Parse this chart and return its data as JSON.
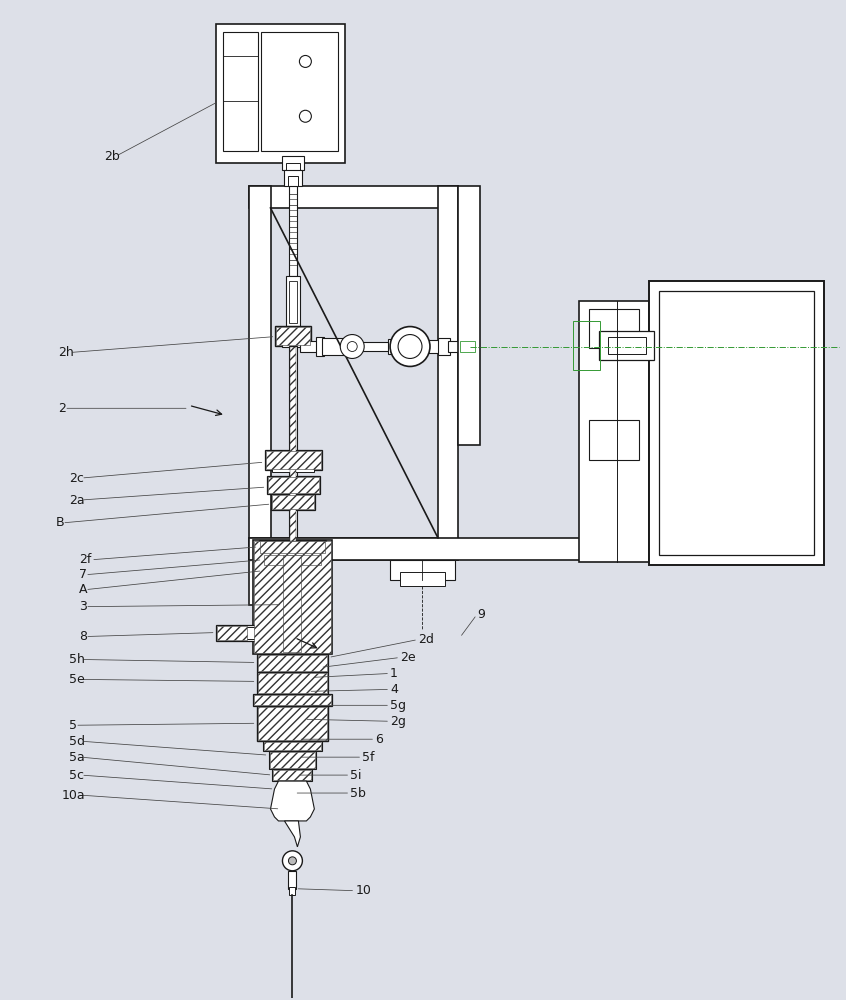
{
  "bg_color": "#dde0e8",
  "line_color": "#1a1a1a",
  "fig_width": 8.46,
  "fig_height": 10.0,
  "labels_left": [
    [
      "2b",
      103,
      155
    ],
    [
      "2h",
      57,
      352
    ],
    [
      "2",
      57,
      408
    ],
    [
      "2c",
      68,
      478
    ],
    [
      "2a",
      68,
      500
    ],
    [
      "B",
      55,
      523
    ],
    [
      "2f",
      78,
      560
    ],
    [
      "7",
      78,
      575
    ],
    [
      "A",
      78,
      590
    ],
    [
      "3",
      78,
      607
    ],
    [
      "8",
      78,
      637
    ],
    [
      "5h",
      68,
      660
    ],
    [
      "5e",
      68,
      680
    ],
    [
      "5",
      68,
      726
    ],
    [
      "5d",
      68,
      742
    ],
    [
      "5a",
      68,
      758
    ],
    [
      "5c",
      68,
      776
    ],
    [
      "10a",
      60,
      796
    ]
  ],
  "labels_right": [
    [
      "9",
      477,
      615
    ],
    [
      "2d",
      418,
      640
    ],
    [
      "2e",
      400,
      658
    ],
    [
      "1",
      390,
      674
    ],
    [
      "4",
      390,
      690
    ],
    [
      "5g",
      390,
      706
    ],
    [
      "2g",
      390,
      722
    ],
    [
      "6",
      375,
      740
    ],
    [
      "5f",
      362,
      758
    ],
    [
      "5i",
      350,
      776
    ],
    [
      "5b",
      350,
      794
    ],
    [
      "10",
      355,
      892
    ]
  ]
}
